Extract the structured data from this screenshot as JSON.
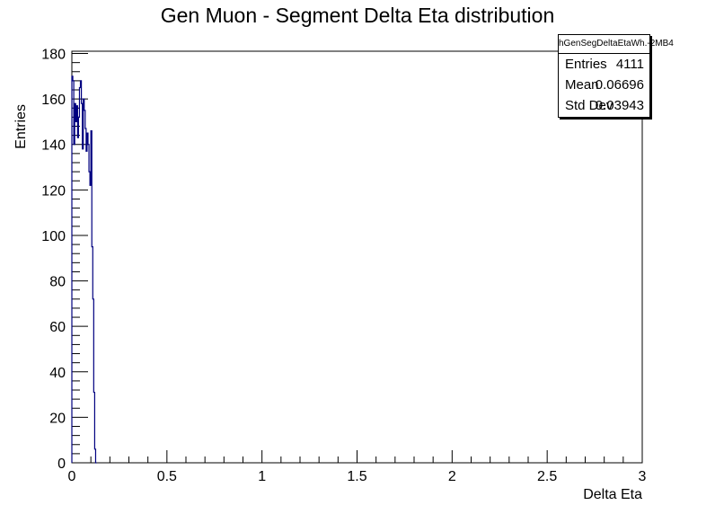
{
  "chart_data": {
    "type": "bar",
    "title": "Gen Muon - Segment Delta Eta distribution",
    "xlabel": "Delta Eta",
    "ylabel": "Entries",
    "xlim": [
      0,
      3
    ],
    "ylim": [
      0,
      181
    ],
    "x_ticks": [
      "0",
      "0.5",
      "1",
      "1.5",
      "2",
      "2.5",
      "3"
    ],
    "y_ticks": [
      "0",
      "20",
      "40",
      "60",
      "80",
      "100",
      "120",
      "140",
      "160",
      "180"
    ],
    "bin_width": 0.005,
    "bin_start": 0,
    "values": [
      170,
      168,
      140,
      158,
      150,
      157,
      143,
      152,
      165,
      168,
      158,
      138,
      160,
      155,
      147,
      137,
      145,
      140,
      128,
      122,
      146,
      95,
      72,
      31,
      6,
      0
    ],
    "line_color": "#000080",
    "stats": {
      "name": "hGenSegDeltaEtaWh.-2MB4",
      "rows": [
        {
          "label": "Entries",
          "value": "4111"
        },
        {
          "label": "Mean",
          "value": "0.06696"
        },
        {
          "label": "Std Dev",
          "value": "0.03943"
        }
      ]
    }
  }
}
